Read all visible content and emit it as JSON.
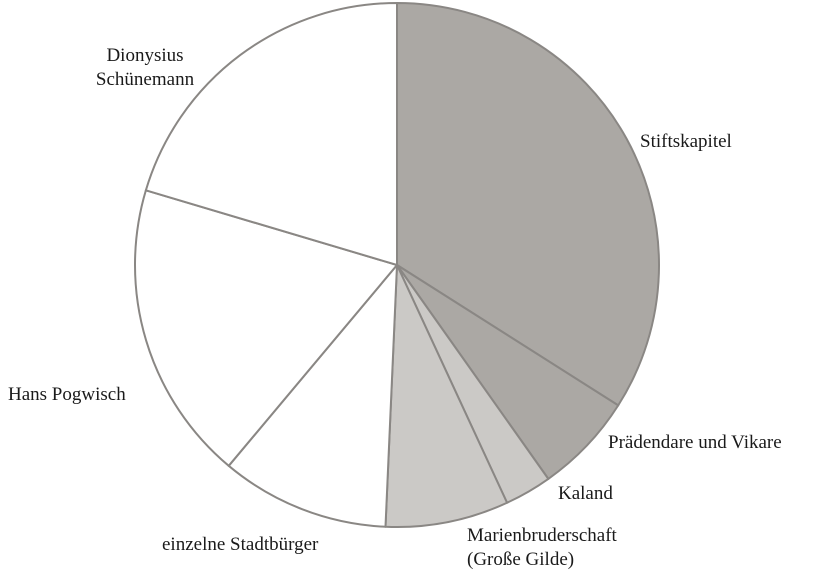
{
  "chart_data": {
    "type": "pie",
    "start_angle_deg": 0,
    "direction": "clockwise",
    "slices": [
      {
        "label": "Stiftskapitel",
        "label_lines": [
          "Stiftskapitel"
        ],
        "value": 34,
        "color": "#aba8a4"
      },
      {
        "label": "Prädendare und Vikare",
        "label_lines": [
          "Prädendare und Vikare"
        ],
        "value": 6.2,
        "color": "#aba8a4"
      },
      {
        "label": "Kaland",
        "label_lines": [
          "Kaland"
        ],
        "value": 2.9,
        "color": "#cbc9c6"
      },
      {
        "label": "Marienbruderschaft (Große Gilde)",
        "label_lines": [
          "Marienbruderschaft",
          "(Große Gilde)"
        ],
        "value": 7.6,
        "color": "#cbc9c6"
      },
      {
        "label": "einzelne Stadtbürger",
        "label_lines": [
          "einzelne Stadtbürger"
        ],
        "value": 10.4,
        "color": "#ffffff"
      },
      {
        "label": "Hans Pogwisch",
        "label_lines": [
          "Hans Pogwisch"
        ],
        "value": 18.5,
        "color": "#ffffff"
      },
      {
        "label": "Dionysius Schünemann",
        "label_lines": [
          "Dionysius",
          "Schünemann"
        ],
        "value": 20.4,
        "color": "#ffffff"
      }
    ],
    "stroke_color": "#8a8784"
  }
}
